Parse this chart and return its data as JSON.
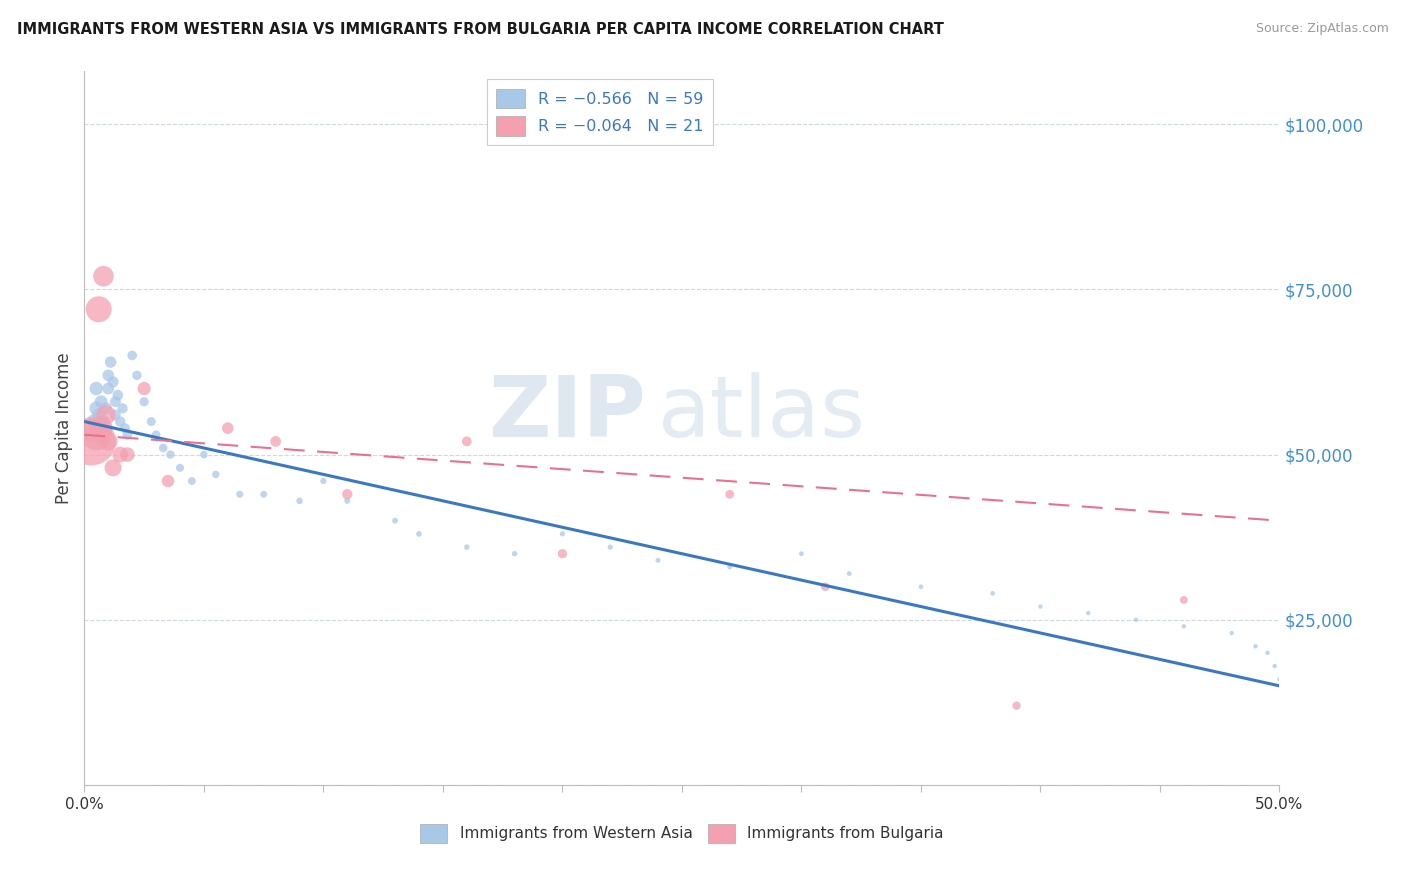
{
  "title": "IMMIGRANTS FROM WESTERN ASIA VS IMMIGRANTS FROM BULGARIA PER CAPITA INCOME CORRELATION CHART",
  "source": "Source: ZipAtlas.com",
  "ylabel": "Per Capita Income",
  "ytick_vals": [
    0,
    25000,
    50000,
    75000,
    100000
  ],
  "ytick_labels": [
    "",
    "$25,000",
    "$50,000",
    "$75,000",
    "$100,000"
  ],
  "xlim": [
    0.0,
    0.5
  ],
  "ylim": [
    0,
    108000
  ],
  "legend1_label": "R = −0.566   N = 59",
  "legend2_label": "R = −0.064   N = 21",
  "blue_color": "#a8c8e8",
  "pink_color": "#f4a0b0",
  "line_blue_color": "#3a78c3",
  "line_pink_color": "#e87090",
  "watermark_zip": "ZIP",
  "watermark_atlas": "atlas",
  "background_color": "#ffffff",
  "grid_color": "#d0d8e0",
  "blue_x": [
    0.003,
    0.004,
    0.005,
    0.005,
    0.006,
    0.006,
    0.007,
    0.007,
    0.008,
    0.008,
    0.009,
    0.01,
    0.01,
    0.011,
    0.012,
    0.013,
    0.013,
    0.014,
    0.015,
    0.016,
    0.017,
    0.018,
    0.02,
    0.022,
    0.025,
    0.028,
    0.03,
    0.033,
    0.036,
    0.04,
    0.045,
    0.05,
    0.055,
    0.065,
    0.075,
    0.09,
    0.1,
    0.11,
    0.13,
    0.14,
    0.16,
    0.18,
    0.2,
    0.22,
    0.24,
    0.27,
    0.3,
    0.32,
    0.35,
    0.38,
    0.4,
    0.42,
    0.44,
    0.46,
    0.48,
    0.49,
    0.495,
    0.498,
    0.5
  ],
  "blue_y": [
    53000,
    55000,
    57000,
    60000,
    56000,
    54000,
    58000,
    52000,
    55000,
    53000,
    57000,
    60000,
    62000,
    64000,
    61000,
    58000,
    56000,
    59000,
    55000,
    57000,
    54000,
    53000,
    65000,
    62000,
    58000,
    55000,
    53000,
    51000,
    50000,
    48000,
    46000,
    50000,
    47000,
    44000,
    44000,
    43000,
    46000,
    43000,
    40000,
    38000,
    36000,
    35000,
    38000,
    36000,
    34000,
    33000,
    35000,
    32000,
    30000,
    29000,
    27000,
    26000,
    25000,
    24000,
    23000,
    21000,
    20000,
    18000,
    16000
  ],
  "blue_sizes": [
    120,
    110,
    100,
    95,
    90,
    88,
    85,
    82,
    80,
    78,
    75,
    72,
    70,
    68,
    65,
    62,
    60,
    58,
    56,
    54,
    52,
    50,
    48,
    46,
    44,
    42,
    40,
    38,
    36,
    34,
    32,
    30,
    28,
    26,
    24,
    22,
    20,
    19,
    18,
    17,
    16,
    15,
    14,
    14,
    13,
    13,
    12,
    12,
    11,
    11,
    10,
    10,
    10,
    10,
    10,
    10,
    10,
    10,
    10
  ],
  "pink_x": [
    0.003,
    0.005,
    0.006,
    0.007,
    0.008,
    0.009,
    0.01,
    0.012,
    0.015,
    0.018,
    0.025,
    0.035,
    0.06,
    0.08,
    0.11,
    0.16,
    0.2,
    0.27,
    0.31,
    0.39,
    0.46
  ],
  "pink_y": [
    52000,
    53000,
    72000,
    54000,
    77000,
    56000,
    52000,
    48000,
    50000,
    50000,
    60000,
    46000,
    54000,
    52000,
    44000,
    52000,
    35000,
    44000,
    30000,
    12000,
    28000
  ],
  "pink_sizes": [
    1200,
    500,
    350,
    280,
    220,
    200,
    180,
    150,
    130,
    110,
    90,
    80,
    70,
    60,
    55,
    50,
    45,
    40,
    38,
    35,
    32
  ],
  "xtick_positions": [
    0.0,
    0.05,
    0.1,
    0.15,
    0.2,
    0.25,
    0.3,
    0.35,
    0.4,
    0.45,
    0.5
  ]
}
